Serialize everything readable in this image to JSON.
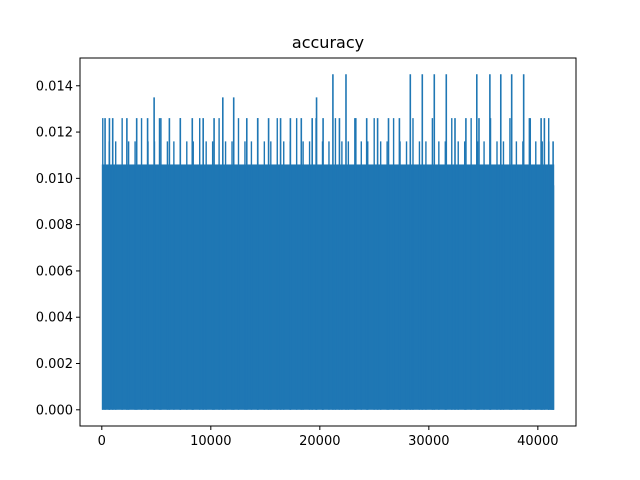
{
  "chart_data": {
    "type": "line",
    "title": "accuracy",
    "xlabel": "",
    "ylabel": "",
    "xlim": [
      -2000,
      43500
    ],
    "ylim": [
      -0.0007,
      0.0152
    ],
    "xticks": [
      0,
      10000,
      20000,
      30000,
      40000
    ],
    "xtick_labels": [
      "0",
      "10000",
      "20000",
      "30000",
      "40000"
    ],
    "yticks": [
      0.0,
      0.002,
      0.004,
      0.006,
      0.008,
      0.01,
      0.012,
      0.014
    ],
    "ytick_labels": [
      "0.000",
      "0.002",
      "0.004",
      "0.006",
      "0.008",
      "0.010",
      "0.012",
      "0.014"
    ],
    "grid": false,
    "legend": "none",
    "series": [
      {
        "color": "#1f77b4",
        "x_range": [
          0,
          41500
        ],
        "base_value": 0.0,
        "typical_peak": 0.0106,
        "secondary_peaks": [
          0.0116,
          0.0126
        ],
        "spike_x": [
          300,
          700,
          1000,
          2300,
          3200,
          4200,
          4800,
          5300,
          6200,
          7200,
          8300,
          9300,
          10300,
          11100,
          12100,
          13300,
          14300,
          15300,
          16400,
          17300,
          18300,
          19300,
          19700,
          20300,
          21200,
          21800,
          22400,
          23300,
          24300,
          25300,
          26300,
          27300,
          28300,
          29400,
          30500,
          31600,
          32400,
          33400,
          34400,
          34600,
          35600,
          36600,
          37600,
          38700,
          39300,
          40300,
          40600,
          41000,
          41400
        ],
        "spike_y": [
          0.0126,
          0.0126,
          0.0126,
          0.0126,
          0.0126,
          0.0126,
          0.0135,
          0.0126,
          0.0126,
          0.0126,
          0.0126,
          0.0126,
          0.0126,
          0.0135,
          0.0135,
          0.0126,
          0.0126,
          0.0126,
          0.0126,
          0.0126,
          0.0126,
          0.0126,
          0.0135,
          0.0126,
          0.0145,
          0.0126,
          0.0145,
          0.0126,
          0.0126,
          0.0126,
          0.0126,
          0.0126,
          0.0145,
          0.0145,
          0.0145,
          0.0145,
          0.0126,
          0.0126,
          0.0145,
          0.0126,
          0.0145,
          0.0145,
          0.0145,
          0.0145,
          0.0126,
          0.0126,
          0.0126,
          0.0116,
          0.0116
        ],
        "tail_value": 0.0097
      }
    ]
  }
}
